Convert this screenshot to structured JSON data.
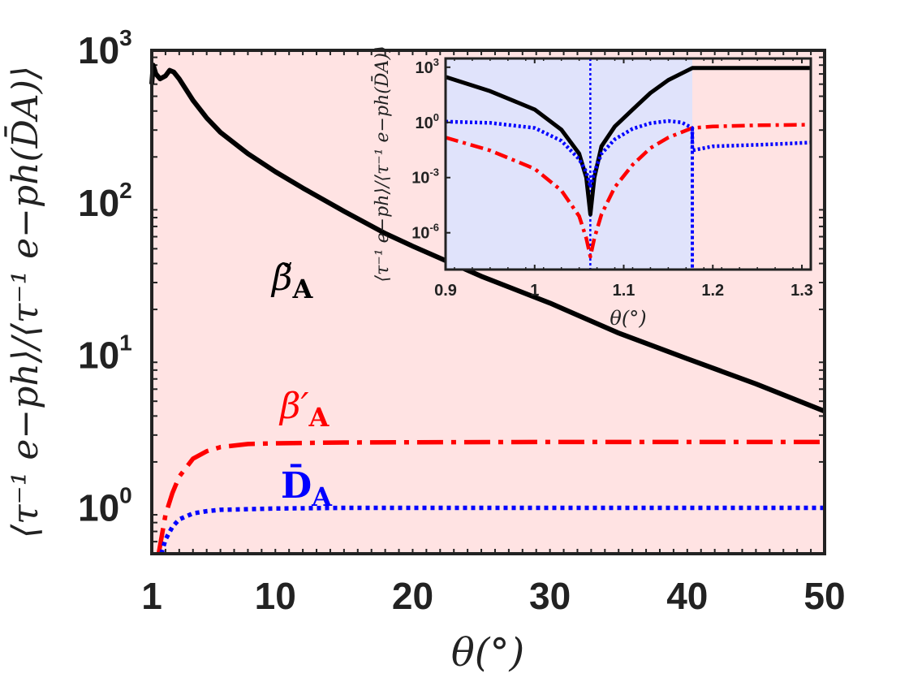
{
  "chart_data": [
    {
      "type": "line",
      "scale": "semilogy",
      "xlabel": "θ(°)",
      "ylabel": "⟨τ⁻¹ e−ph⟩/⟨τ⁻¹ e−ph(D̄A)⟩",
      "xlim": [
        1,
        50
      ],
      "ylim": [
        0.5,
        1000
      ],
      "xticks": [
        1,
        10,
        20,
        30,
        40,
        50
      ],
      "yticks": [
        1,
        10,
        100,
        1000
      ],
      "ytick_labels": [
        {
          "base": "10",
          "exp": "0"
        },
        {
          "base": "10",
          "exp": "1"
        },
        {
          "base": "10",
          "exp": "2"
        },
        {
          "base": "10",
          "exp": "3"
        }
      ],
      "background": "#ffe3e3",
      "series": [
        {
          "name": "β̃A",
          "label_base": "β̃",
          "label_sub": "A",
          "color": "#000000",
          "style": "solid",
          "x": [
            1.0,
            1.1,
            1.3,
            1.6,
            2.0,
            2.3,
            2.6,
            3,
            4,
            5,
            6,
            8,
            10,
            12,
            15,
            18,
            20,
            25,
            30,
            35,
            40,
            45,
            50
          ],
          "y": [
            600,
            800,
            700,
            650,
            680,
            740,
            720,
            650,
            470,
            360,
            290,
            210,
            160,
            125,
            88,
            63,
            52,
            33,
            22,
            14,
            9.5,
            6.5,
            4.3
          ]
        },
        {
          "name": "β′A",
          "label_base": "β′",
          "label_sub": "A",
          "color": "#ff0000",
          "style": "dashdot",
          "x": [
            1.5,
            2,
            2.5,
            3,
            4,
            5,
            6,
            8,
            10,
            15,
            20,
            30,
            40,
            50
          ],
          "y": [
            0.5,
            0.9,
            1.25,
            1.6,
            2.1,
            2.35,
            2.5,
            2.62,
            2.65,
            2.68,
            2.69,
            2.7,
            2.7,
            2.7
          ]
        },
        {
          "name": "D̄A",
          "label_base": "D̄",
          "label_sub": "A",
          "color": "#0000ff",
          "style": "dotted",
          "x": [
            1.7,
            2,
            2.5,
            3,
            4,
            5,
            6,
            8,
            10,
            15,
            20,
            30,
            40,
            50
          ],
          "y": [
            0.5,
            0.62,
            0.75,
            0.84,
            0.92,
            0.95,
            0.97,
            0.98,
            0.99,
            1.0,
            1.0,
            1.0,
            1.0,
            1.0
          ]
        }
      ]
    },
    {
      "type": "line",
      "scale": "semilogy",
      "inset": true,
      "xlabel": "θ(°)",
      "ylabel": "⟨τ⁻¹ e−ph⟩/⟨τ⁻¹ e−ph(D̄A)⟩",
      "xlim": [
        0.9,
        1.31
      ],
      "ylim": [
        1e-08,
        3000
      ],
      "xticks": [
        0.9,
        1,
        1.1,
        1.2,
        1.3
      ],
      "xtick_labels": [
        "0.9",
        "1",
        "1.1",
        "1.2",
        "1.3"
      ],
      "yticks": [
        1e-06,
        0.001,
        1,
        1000
      ],
      "ytick_labels": [
        {
          "base": "10",
          "exp": "-6"
        },
        {
          "base": "10",
          "exp": "-3"
        },
        {
          "base": "10",
          "exp": "0"
        },
        {
          "base": "10",
          "exp": "3"
        }
      ],
      "region_blue": [
        0.9,
        1.177
      ],
      "region_pink": [
        1.177,
        1.31
      ],
      "region_colors": {
        "blue": "#e0e3fb",
        "pink": "#ffe3e3"
      },
      "series": [
        {
          "name": "β̃A",
          "color": "#000000",
          "style": "solid",
          "x": [
            0.9,
            0.95,
            1.0,
            1.03,
            1.05,
            1.058,
            1.0625,
            1.067,
            1.075,
            1.09,
            1.11,
            1.13,
            1.15,
            1.177,
            1.177,
            1.31
          ],
          "y": [
            300,
            50,
            5,
            0.4,
            0.02,
            0.001,
            1e-05,
            0.001,
            0.05,
            0.6,
            5,
            40,
            200,
            900,
            900,
            900
          ]
        },
        {
          "name": "β′A",
          "color": "#ff0000",
          "style": "dashdot",
          "x": [
            0.9,
            0.95,
            1.0,
            1.03,
            1.05,
            1.058,
            1.0625,
            1.067,
            1.075,
            1.09,
            1.11,
            1.13,
            1.15,
            1.177,
            1.2,
            1.25,
            1.31
          ],
          "y": [
            0.15,
            0.03,
            0.003,
            0.0002,
            8e-06,
            5e-07,
            5e-08,
            5e-07,
            1e-05,
            0.0003,
            0.005,
            0.04,
            0.15,
            0.5,
            0.6,
            0.7,
            0.75
          ]
        },
        {
          "name": "D̄A",
          "color": "#0000ff",
          "style": "dotted",
          "x": [
            0.9,
            0.95,
            1.0,
            1.03,
            1.05,
            1.058,
            1.0625,
            1.067,
            1.075,
            1.09,
            1.11,
            1.13,
            1.15,
            1.165,
            1.177,
            1.177,
            1.2,
            1.25,
            1.31
          ],
          "y": [
            1.1,
            0.95,
            0.5,
            0.1,
            0.01,
            0.002,
            0.0003,
            0.002,
            0.02,
            0.12,
            0.45,
            0.9,
            1.2,
            1.0,
            0.5,
            0.03,
            0.05,
            0.06,
            0.08
          ]
        }
      ]
    }
  ]
}
